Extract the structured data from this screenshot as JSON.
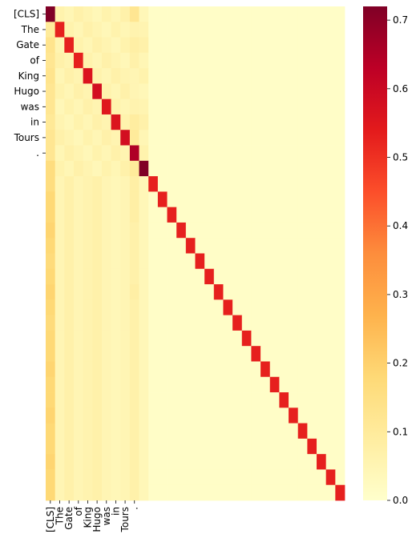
{
  "chart_data": {
    "type": "heatmap",
    "title": "",
    "xlabel": "",
    "ylabel": "",
    "n": 32,
    "tokens": [
      "[CLS]",
      "The",
      "Gate",
      "of",
      "King",
      "Hugo",
      "was",
      "in",
      "Tours",
      "."
    ],
    "x_tick_labels": [
      "[CLS]",
      "The",
      "Gate",
      "of",
      "King",
      "Hugo",
      "was",
      "in",
      "Tours",
      "."
    ],
    "y_tick_labels": [
      "[CLS]",
      "The",
      "Gate",
      "of",
      "King",
      "Hugo",
      "was",
      "in",
      "Tours",
      "."
    ],
    "values_description_note": "",
    "diagonal_values": [
      0.72,
      0.53,
      0.53,
      0.53,
      0.56,
      0.58,
      0.55,
      0.56,
      0.58,
      0.65,
      0.72,
      0.53,
      0.53,
      0.53,
      0.53,
      0.53,
      0.53,
      0.53,
      0.53,
      0.53,
      0.53,
      0.53,
      0.53,
      0.53,
      0.53,
      0.53,
      0.53,
      0.53,
      0.53,
      0.53,
      0.53,
      0.53
    ],
    "first_column_values": [
      0.72,
      0.1,
      0.13,
      0.12,
      0.13,
      0.12,
      0.12,
      0.11,
      0.12,
      0.12,
      0.16,
      0.16,
      0.18,
      0.18,
      0.19,
      0.18,
      0.17,
      0.18,
      0.19,
      0.18,
      0.17,
      0.18,
      0.18,
      0.19,
      0.18,
      0.18,
      0.19,
      0.18,
      0.18,
      0.19,
      0.18,
      0.18
    ],
    "column_9_values": [
      0.12,
      0.06,
      0.08,
      0.07,
      0.05,
      0.05,
      0.06,
      0.09,
      0.1,
      0.65,
      0.1,
      0.08,
      0.08,
      0.08,
      0.07,
      0.07,
      0.07,
      0.07,
      0.08,
      0.07,
      0.07,
      0.07,
      0.07,
      0.07,
      0.07,
      0.07,
      0.07,
      0.07,
      0.07,
      0.07,
      0.07,
      0.07
    ],
    "background_value": 0.01,
    "colorbar": {
      "min": 0.0,
      "max": 0.72,
      "ticks": [
        0.0,
        0.1,
        0.2,
        0.3,
        0.4,
        0.5,
        0.6,
        0.7
      ],
      "tick_labels": [
        "0.0",
        "0.1",
        "0.2",
        "0.3",
        "0.4",
        "0.5",
        "0.6",
        "0.7"
      ],
      "colormap": "YlOrRd",
      "colors": [
        "#ffffcc",
        "#ffeda0",
        "#fed976",
        "#feb24c",
        "#fd8d3c",
        "#fc4e2a",
        "#e31a1c",
        "#bd0026",
        "#800026"
      ]
    },
    "grid": false,
    "legend": "colorbar-right"
  }
}
